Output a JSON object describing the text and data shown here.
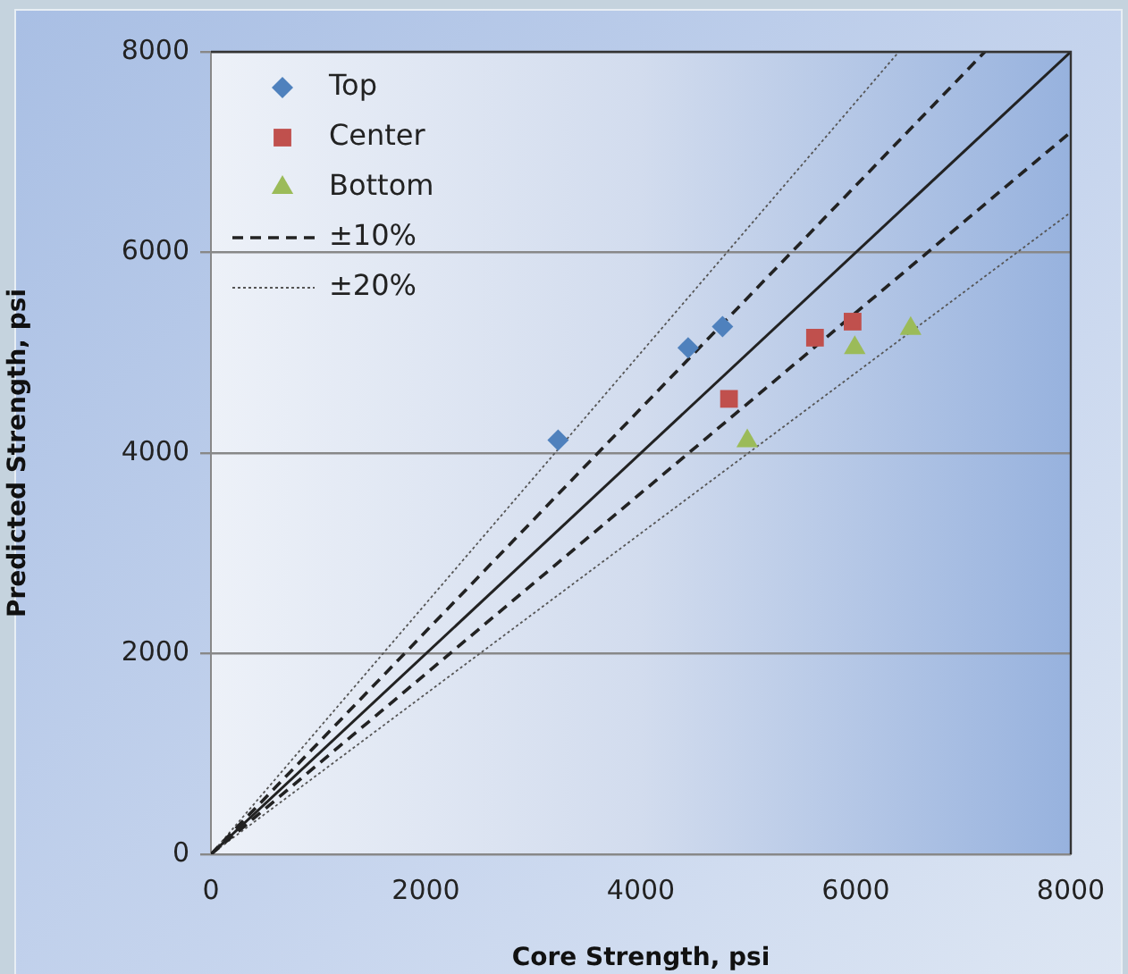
{
  "chart_data": {
    "type": "scatter",
    "xlabel": "Core Strength, psi",
    "ylabel": "Predicted Strength, psi",
    "xlim": [
      0,
      8000
    ],
    "ylim": [
      0,
      8000
    ],
    "xticks": [
      0,
      2000,
      4000,
      6000,
      8000
    ],
    "yticks": [
      0,
      2000,
      4000,
      6000,
      8000
    ],
    "grid": "y",
    "legend": "top left",
    "series": [
      {
        "name": "Top",
        "color": "#4f81bd",
        "marker": "diamond",
        "x": [
          3230,
          4440,
          4760
        ],
        "values": [
          4130,
          5050,
          5260
        ]
      },
      {
        "name": "Center",
        "color": "#c0504d",
        "marker": "square",
        "x": [
          4820,
          5620,
          5970
        ],
        "values": [
          4540,
          5150,
          5310
        ]
      },
      {
        "name": "Bottom",
        "color": "#9bbb59",
        "marker": "triangle",
        "x": [
          4990,
          5990,
          6510
        ],
        "values": [
          4120,
          5050,
          5240
        ]
      },
      {
        "type": "line",
        "color": "#222222",
        "marker": "none",
        "line_style": "solid",
        "x": [
          0,
          8000
        ],
        "values": [
          0,
          8000
        ]
      },
      {
        "name": "±10%",
        "type": "line",
        "color": "#222222",
        "marker": "none",
        "line_style": "dashed",
        "x": [
          0,
          7200
        ],
        "values": [
          0,
          8000
        ]
      },
      {
        "type": "line",
        "color": "#222222",
        "marker": "none",
        "line_style": "dashed",
        "x": [
          0,
          8000
        ],
        "values": [
          0,
          7200
        ]
      },
      {
        "name": "±20%",
        "type": "line",
        "color": "#555555",
        "marker": "none",
        "line_style": "dotted",
        "x": [
          0,
          6400
        ],
        "values": [
          0,
          8000
        ]
      },
      {
        "type": "line",
        "color": "#555555",
        "marker": "none",
        "line_style": "dotted",
        "x": [
          0,
          8000
        ],
        "values": [
          0,
          6400
        ]
      }
    ]
  }
}
